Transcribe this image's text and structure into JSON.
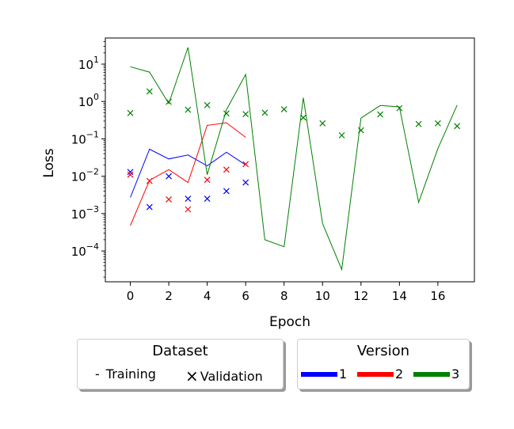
{
  "chart_data": {
    "type": "line",
    "xlabel": "Epoch",
    "ylabel": "Loss",
    "xlim": [
      -1.3,
      17.9
    ],
    "ylim": [
      1.5e-05,
      50
    ],
    "yscale": "log",
    "x_ticks": [
      0,
      2,
      4,
      6,
      8,
      10,
      12,
      14,
      16
    ],
    "y_ticks": [
      {
        "value": 0.0001,
        "base": "10",
        "exp": "−4"
      },
      {
        "value": 0.001,
        "base": "10",
        "exp": "−3"
      },
      {
        "value": 0.01,
        "base": "10",
        "exp": "−2"
      },
      {
        "value": 0.1,
        "base": "10",
        "exp": "−1"
      },
      {
        "value": 1,
        "base": "10",
        "exp": "0"
      },
      {
        "value": 10,
        "base": "10",
        "exp": "1"
      }
    ],
    "grid": false,
    "series": [
      {
        "color": "#0000ff",
        "kind": "line",
        "version": "1",
        "dataset": "Training",
        "x": [
          0,
          1,
          2,
          3,
          4,
          5,
          6
        ],
        "y": [
          0.0027,
          0.053,
          0.029,
          0.037,
          0.019,
          0.044,
          0.02
        ]
      },
      {
        "color": "#0000ff",
        "kind": "marker",
        "version": "1",
        "dataset": "Validation",
        "x": [
          0,
          1,
          2,
          3,
          4,
          5,
          6
        ],
        "y": [
          0.013,
          0.0015,
          0.01,
          0.0025,
          0.0025,
          0.004,
          0.0068
        ]
      },
      {
        "color": "#ff0000",
        "kind": "line",
        "version": "2",
        "dataset": "Training",
        "x": [
          0,
          1,
          2,
          3,
          4,
          5,
          6
        ],
        "y": [
          0.00048,
          0.0078,
          0.015,
          0.0068,
          0.23,
          0.27,
          0.11
        ]
      },
      {
        "color": "#ff0000",
        "kind": "marker",
        "version": "2",
        "dataset": "Validation",
        "x": [
          0,
          1,
          2,
          3,
          4,
          5,
          6
        ],
        "y": [
          0.011,
          0.0075,
          0.0024,
          0.0013,
          0.008,
          0.015,
          0.021
        ]
      },
      {
        "color": "#008000",
        "kind": "line",
        "version": "3",
        "dataset": "Training",
        "x": [
          0,
          1,
          2,
          3,
          4,
          5,
          6,
          7,
          8,
          9,
          10,
          11,
          12,
          13,
          14,
          15,
          16,
          17
        ],
        "y": [
          8.5,
          6.1,
          0.88,
          28,
          0.011,
          0.6,
          5.3,
          0.0002,
          0.00013,
          1.25,
          0.00054,
          3.2e-05,
          0.36,
          0.78,
          0.72,
          0.002,
          0.055,
          0.8
        ]
      },
      {
        "color": "#008000",
        "kind": "marker",
        "version": "3",
        "dataset": "Validation",
        "x": [
          0,
          1,
          2,
          3,
          4,
          5,
          6,
          7,
          8,
          9,
          10,
          11,
          12,
          13,
          14,
          15,
          16,
          17
        ],
        "y": [
          0.49,
          1.85,
          0.98,
          0.6,
          0.8,
          0.48,
          0.46,
          0.5,
          0.62,
          0.37,
          0.26,
          0.125,
          0.17,
          0.45,
          0.66,
          0.25,
          0.26,
          0.22
        ]
      }
    ]
  },
  "legends": {
    "dataset": {
      "title": "Dataset",
      "items": [
        {
          "symbol": "-",
          "label": "Training"
        },
        {
          "symbol": "×",
          "label": "Validation"
        }
      ]
    },
    "version": {
      "title": "Version",
      "items": [
        {
          "label": "1",
          "color": "#0000ff"
        },
        {
          "label": "2",
          "color": "#ff0000"
        },
        {
          "label": "3",
          "color": "#008000"
        }
      ]
    }
  }
}
